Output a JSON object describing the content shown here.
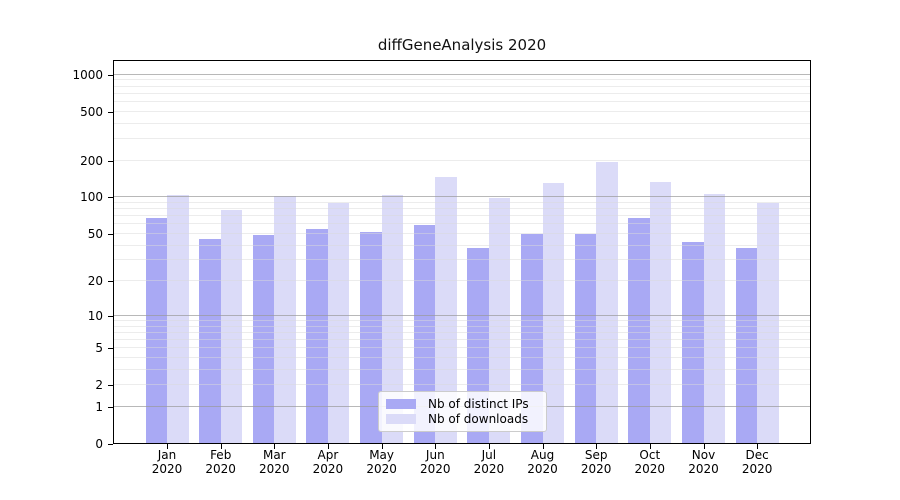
{
  "title": "diffGeneAnalysis 2020",
  "colors": {
    "distinct_ips": "#a9a9f4",
    "downloads": "#dbdbf8",
    "grid_major": "#9a9a9a",
    "grid_minor": "#d9d9d9",
    "axis": "#000000",
    "legend_border": "#cccccc",
    "background": "#ffffff"
  },
  "chart_data": {
    "type": "bar",
    "title": "diffGeneAnalysis 2020",
    "y_scale": "log1p",
    "ylim": [
      0,
      1315
    ],
    "y_ticks": [
      0,
      1,
      2,
      5,
      10,
      20,
      50,
      100,
      200,
      500,
      1000
    ],
    "grid": "on",
    "grid_major_at": [
      1,
      10,
      100,
      1000
    ],
    "legend_position": "lower center",
    "xlabel": "",
    "ylabel": "",
    "year": "2020",
    "months": [
      "Jan",
      "Feb",
      "Mar",
      "Apr",
      "May",
      "Jun",
      "Jul",
      "Aug",
      "Sep",
      "Oct",
      "Nov",
      "Dec"
    ],
    "categories": [
      "Jan 2020",
      "Feb 2020",
      "Mar 2020",
      "Apr 2020",
      "May 2020",
      "Jun 2020",
      "Jul 2020",
      "Aug 2020",
      "Sep 2020",
      "Oct 2020",
      "Nov 2020",
      "Dec 2020"
    ],
    "series": [
      {
        "name": "Nb of distinct IPs",
        "key": "distinct-ips",
        "color": "#a9a9f4",
        "values": [
          68,
          45,
          49,
          55,
          52,
          59,
          38,
          50,
          50,
          67,
          43,
          38
        ]
      },
      {
        "name": "Nb of downloads",
        "key": "downloads",
        "color": "#dbdbf8",
        "values": [
          105,
          79,
          102,
          90,
          105,
          146,
          98,
          130,
          193,
          133,
          107,
          90
        ]
      }
    ]
  }
}
